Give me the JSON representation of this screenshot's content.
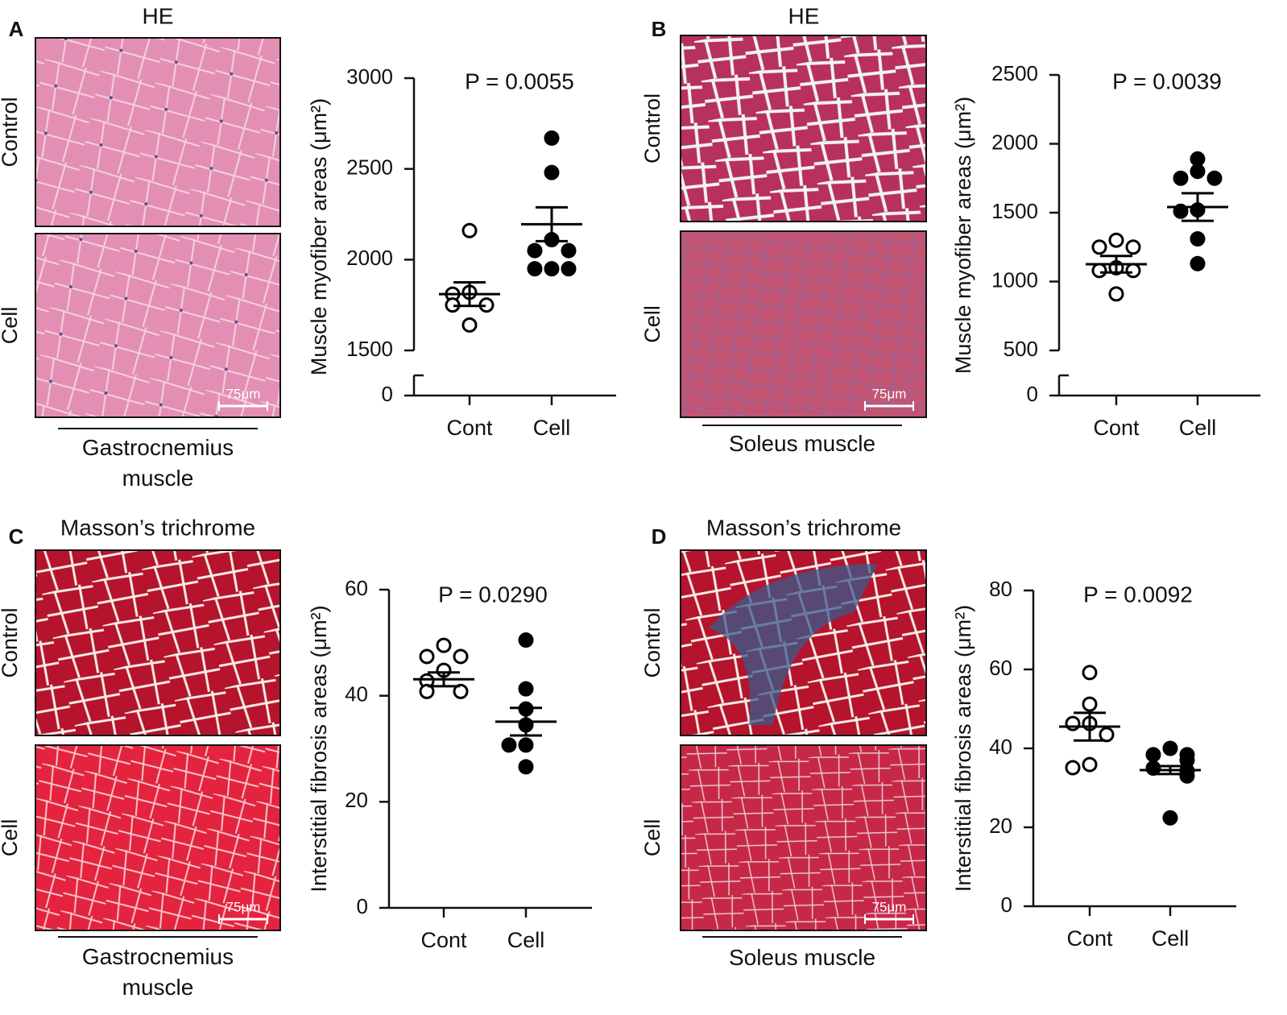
{
  "panels": [
    {
      "letter": "A",
      "stain": "HE",
      "row_labels": [
        "Control",
        "Cell"
      ],
      "scale_bar": "75μm",
      "muscle": "Gastrocnemius muscle"
    },
    {
      "letter": "B",
      "stain": "HE",
      "row_labels": [
        "Control",
        "Cell"
      ],
      "scale_bar": "75μm",
      "muscle": "Soleus muscle"
    },
    {
      "letter": "C",
      "stain": "Masson’s trichrome",
      "row_labels": [
        "Control",
        "Cell"
      ],
      "scale_bar": "75μm",
      "muscle": "Gastrocnemius muscle"
    },
    {
      "letter": "D",
      "stain": "Masson’s trichrome",
      "row_labels": [
        "Control",
        "Cell"
      ],
      "scale_bar": "75μm",
      "muscle": "Soleus muscle"
    }
  ],
  "chart_data": [
    {
      "type": "strip",
      "y_label": "Muscle myofiber areas (μm²)",
      "annotation": "P = 0.0055",
      "categories": [
        "Cont",
        "Cell"
      ],
      "series": [
        {
          "color": "#000000",
          "filled": false,
          "values": [
            2160,
            1820,
            1810,
            1750,
            1750,
            1640
          ],
          "mean": 1810,
          "sem": 65
        },
        {
          "color": "#000000",
          "filled": true,
          "values": [
            2670,
            2480,
            2110,
            2050,
            2050,
            1950,
            1950,
            1950
          ],
          "mean": 2195,
          "sem": 93
        }
      ],
      "ylim": [
        0,
        3000
      ],
      "yticks": [
        0,
        1500,
        2000,
        2500,
        3000
      ],
      "ybreak": true
    },
    {
      "type": "strip",
      "y_label": "Muscle myofiber areas (μm²)",
      "annotation": "P = 0.0039",
      "categories": [
        "Cont",
        "Cell"
      ],
      "series": [
        {
          "color": "#000000",
          "filled": false,
          "values": [
            1300,
            1250,
            1250,
            1100,
            1080,
            1080,
            910
          ],
          "mean": 1126,
          "sem": 60
        },
        {
          "color": "#000000",
          "filled": true,
          "values": [
            1890,
            1800,
            1750,
            1750,
            1520,
            1510,
            1310,
            1130
          ],
          "mean": 1541,
          "sem": 100
        }
      ],
      "ylim": [
        0,
        2500
      ],
      "yticks": [
        0,
        500,
        1000,
        1500,
        2000,
        2500
      ],
      "ybreak": true
    },
    {
      "type": "strip",
      "y_label": "Interstitial fibrosis areas (μm²)",
      "annotation": "P = 0.0290",
      "categories": [
        "Cont",
        "Cell"
      ],
      "series": [
        {
          "color": "#000000",
          "filled": false,
          "values": [
            49.5,
            47.4,
            47.4,
            44.8,
            42.8,
            40.8,
            40.8
          ],
          "mean": 43.1,
          "sem": 1.3
        },
        {
          "color": "#000000",
          "filled": true,
          "values": [
            50.5,
            41.3,
            37.5,
            34.5,
            30.7,
            30.7,
            26.6
          ],
          "mean": 35.1,
          "sem": 2.6
        }
      ],
      "ylim": [
        0,
        60
      ],
      "yticks": [
        0,
        20,
        40,
        60
      ],
      "ybreak": false
    },
    {
      "type": "strip",
      "y_label": "Interstitial fibrosis areas (μm²)",
      "annotation": "P = 0.0092",
      "categories": [
        "Cont",
        "Cell"
      ],
      "series": [
        {
          "color": "#000000",
          "filled": false,
          "values": [
            59.2,
            51.2,
            46.3,
            46.3,
            43.5,
            35.9,
            35.1
          ],
          "mean": 45.5,
          "sem": 3.5
        },
        {
          "color": "#000000",
          "filled": true,
          "values": [
            40,
            38.4,
            38.4,
            37,
            35,
            34.3,
            33,
            22.4
          ],
          "mean": 34.5,
          "sem": 1
        }
      ],
      "ylim": [
        0,
        80
      ],
      "yticks": [
        0,
        20,
        40,
        60,
        80
      ],
      "ybreak": false
    }
  ]
}
